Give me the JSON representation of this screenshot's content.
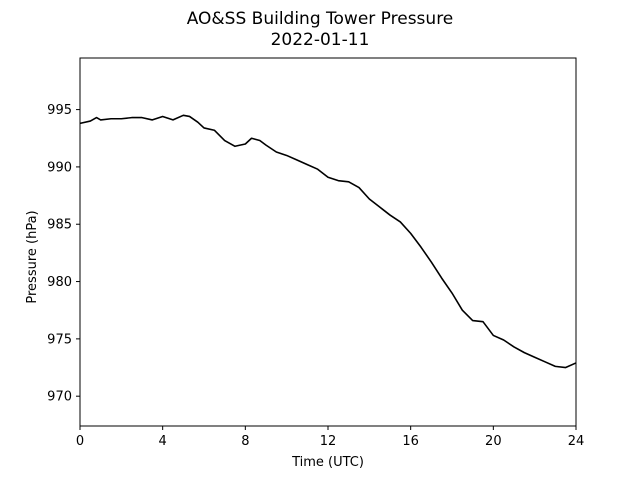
{
  "chart_data": {
    "type": "line",
    "title": "AO&SS Building Tower Pressure",
    "subtitle": "2022-01-11",
    "xlabel": "Time (UTC)",
    "ylabel": "Pressure (hPa)",
    "xlim": [
      0,
      24
    ],
    "ylim": [
      967.4,
      999.5
    ],
    "xticks": [
      0,
      4,
      8,
      12,
      16,
      20,
      24
    ],
    "yticks": [
      970,
      975,
      980,
      985,
      990,
      995
    ],
    "grid": false,
    "line_color": "#000000",
    "series": [
      {
        "x": [
          0,
          0.5,
          0.8,
          1.0,
          1.5,
          2.0,
          2.5,
          3.0,
          3.5,
          4.0,
          4.5,
          5.0,
          5.3,
          5.7,
          6.0,
          6.5,
          7.0,
          7.5,
          8.0,
          8.3,
          8.7,
          9.0,
          9.5,
          10.0,
          10.5,
          11.0,
          11.5,
          12.0,
          12.5,
          13.0,
          13.5,
          14.0,
          14.5,
          15.0,
          15.5,
          16.0,
          16.5,
          17.0,
          17.5,
          18.0,
          18.5,
          19.0,
          19.5,
          20.0,
          20.5,
          21.0,
          21.5,
          22.0,
          22.5,
          23.0,
          23.5,
          24.0
        ],
        "y": [
          993.8,
          994.0,
          994.3,
          994.1,
          994.2,
          994.2,
          994.3,
          994.3,
          994.1,
          994.4,
          994.1,
          994.5,
          994.4,
          993.9,
          993.4,
          993.2,
          992.3,
          991.8,
          992.0,
          992.5,
          992.3,
          991.9,
          991.3,
          991.0,
          990.6,
          990.2,
          989.8,
          989.1,
          988.8,
          988.7,
          988.2,
          987.2,
          986.5,
          985.8,
          985.2,
          984.2,
          983.0,
          981.7,
          980.3,
          979.0,
          977.5,
          976.6,
          976.5,
          975.3,
          974.9,
          974.3,
          973.8,
          973.4,
          973.0,
          972.6,
          972.5,
          972.9
        ]
      }
    ]
  }
}
